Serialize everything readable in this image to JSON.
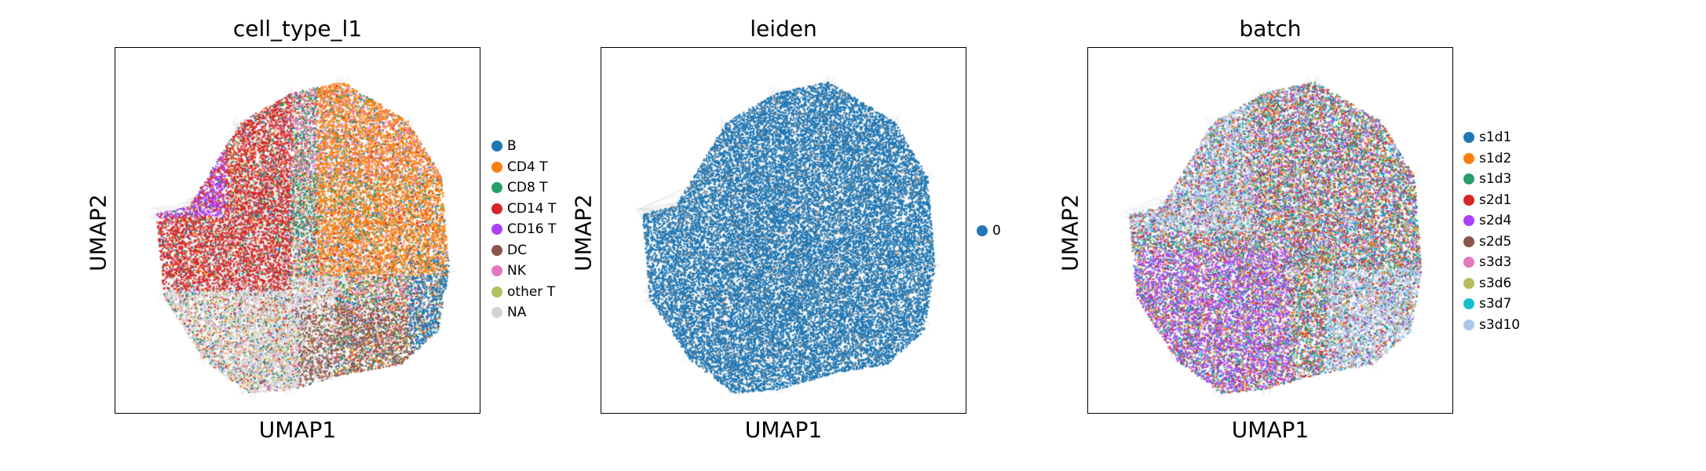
{
  "chart_data": [
    {
      "type": "scatter",
      "title": "cell_type_l1",
      "xlabel": "UMAP1",
      "ylabel": "UMAP2",
      "legend_placement": "right",
      "categories": [
        "B",
        "CD4 T",
        "CD8 T",
        "CD14 T",
        "CD16 T",
        "DC",
        "NK",
        "other T",
        "NA"
      ],
      "colors": [
        "#1f77b4",
        "#ff7f0e",
        "#279e68",
        "#d62728",
        "#aa40fc",
        "#8c564b",
        "#e377c2",
        "#b5bd61",
        "#d3d3d3"
      ]
    },
    {
      "type": "scatter",
      "title": "leiden",
      "xlabel": "UMAP1",
      "ylabel": "UMAP2",
      "legend_placement": "right",
      "categories": [
        "0"
      ],
      "colors": [
        "#1f77b4"
      ]
    },
    {
      "type": "scatter",
      "title": "batch",
      "xlabel": "UMAP1",
      "ylabel": "UMAP2",
      "legend_placement": "right",
      "categories": [
        "s1d1",
        "s1d2",
        "s1d3",
        "s2d1",
        "s2d4",
        "s2d5",
        "s3d3",
        "s3d6",
        "s3d7",
        "s3d10"
      ],
      "colors": [
        "#1f77b4",
        "#ff7f0e",
        "#279e68",
        "#d62728",
        "#aa40fc",
        "#8c564b",
        "#e377c2",
        "#b5bd61",
        "#17becf",
        "#aec7e8"
      ]
    }
  ]
}
